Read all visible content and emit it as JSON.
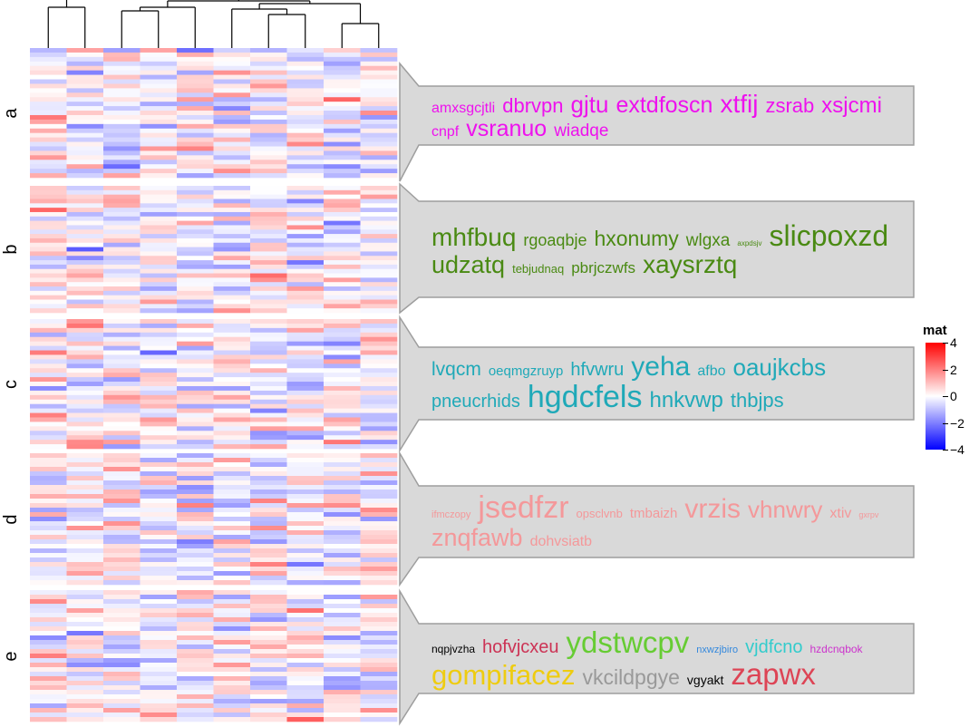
{
  "chart_data": {
    "type": "heatmap",
    "title": "",
    "n_columns": 10,
    "row_groups": [
      {
        "label": "a",
        "n_rows": 29
      },
      {
        "label": "b",
        "n_rows": 29
      },
      {
        "label": "c",
        "n_rows": 29
      },
      {
        "label": "d",
        "n_rows": 29
      },
      {
        "label": "e",
        "n_rows": 29
      }
    ],
    "legend": {
      "title": "mat",
      "ticks": [
        "4",
        "2",
        "0",
        "−2",
        "−4"
      ],
      "range": [
        -4,
        4
      ],
      "colors": {
        "high": "#ff0000",
        "mid": "#ffffff",
        "low": "#0000ff"
      }
    },
    "word_clouds": [
      {
        "group": "a",
        "color": "#ee11ee",
        "words": [
          {
            "text": "amxsgcjtli",
            "size": 16
          },
          {
            "text": "dbrvpn",
            "size": 22
          },
          {
            "text": "gjtu",
            "size": 26
          },
          {
            "text": "extdfoscn",
            "size": 25
          },
          {
            "text": "xtfij",
            "size": 28
          },
          {
            "text": "zsrab",
            "size": 22
          },
          {
            "text": "xsjcmi",
            "size": 24
          },
          {
            "text": "cnpf",
            "size": 16
          },
          {
            "text": "vsranuo",
            "size": 25
          },
          {
            "text": "wiadqe",
            "size": 19
          }
        ]
      },
      {
        "group": "b",
        "color": "#4a8a13",
        "words": [
          {
            "text": "mhfbuq",
            "size": 28
          },
          {
            "text": "rgoaqbje",
            "size": 18
          },
          {
            "text": "hxonumy",
            "size": 23
          },
          {
            "text": "wlgxa",
            "size": 19
          },
          {
            "text": "axpdsjv",
            "size": 8
          },
          {
            "text": "slicpoxzd",
            "size": 32
          },
          {
            "text": "udzatq",
            "size": 27
          },
          {
            "text": "tebjudnaq",
            "size": 13
          },
          {
            "text": "pbrjczwfs",
            "size": 17
          },
          {
            "text": "xaysrztq",
            "size": 28
          }
        ]
      },
      {
        "group": "c",
        "color": "#1fa9b8",
        "words": [
          {
            "text": "lvqcm",
            "size": 21
          },
          {
            "text": "oeqmgzruyp",
            "size": 15
          },
          {
            "text": "hfvwru",
            "size": 20
          },
          {
            "text": "yeha",
            "size": 30
          },
          {
            "text": "afbo",
            "size": 16
          },
          {
            "text": "oaujkcbs",
            "size": 26
          },
          {
            "text": "pneucrhids",
            "size": 20
          },
          {
            "text": "hgdcfels",
            "size": 34
          },
          {
            "text": "hnkvwp",
            "size": 24
          },
          {
            "text": "thbjps",
            "size": 22
          }
        ]
      },
      {
        "group": "d",
        "color": "#f4989a",
        "words": [
          {
            "text": "ifmczopy",
            "size": 11
          },
          {
            "text": "jsedfzr",
            "size": 34
          },
          {
            "text": "opsclvnb",
            "size": 13
          },
          {
            "text": "tmbaizh",
            "size": 15
          },
          {
            "text": "vrzis",
            "size": 30
          },
          {
            "text": "vhnwry",
            "size": 26
          },
          {
            "text": "xtiv",
            "size": 16
          },
          {
            "text": "gxrpv",
            "size": 9
          },
          {
            "text": "znqfawb",
            "size": 27
          },
          {
            "text": "dohvsiatb",
            "size": 16
          }
        ]
      },
      {
        "group": "e",
        "color": "",
        "words": [
          {
            "text": "nqpjvzha",
            "size": 12,
            "color": "#000000"
          },
          {
            "text": "hofvjcxeu",
            "size": 20,
            "color": "#cc3355"
          },
          {
            "text": "ydstwcpv",
            "size": 33,
            "color": "#66cc33"
          },
          {
            "text": "nxwzjbiro",
            "size": 11,
            "color": "#3388dd"
          },
          {
            "text": "vjdfcno",
            "size": 20,
            "color": "#33cccc"
          },
          {
            "text": "hzdcnqbok",
            "size": 12,
            "color": "#cc33cc"
          },
          {
            "text": "gompifacez",
            "size": 31,
            "color": "#eecc11"
          },
          {
            "text": "vkcildpgye",
            "size": 23,
            "color": "#999999"
          },
          {
            "text": "vgyakt",
            "size": 14,
            "color": "#000000"
          },
          {
            "text": "zapwx",
            "size": 33,
            "color": "#dd4455"
          }
        ]
      }
    ]
  }
}
